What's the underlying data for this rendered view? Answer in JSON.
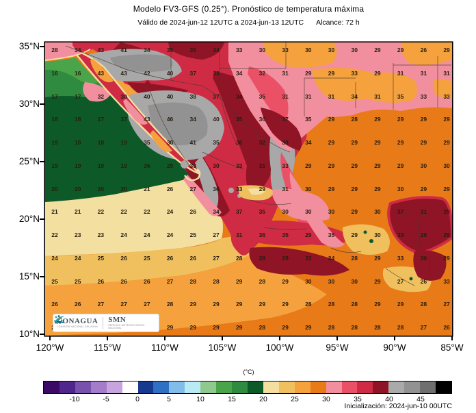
{
  "title": "Modelo FV3-GFS (0.25°). Pronóstico de temperatura máxima",
  "subtitle_valid": "Válido de 2024-jun-12 12UTC a 2024-jun-13 12UTC",
  "subtitle_alcance": "Alcance: 72 h",
  "initialization": "Inicialización: 2024-jun-10 00UTC",
  "axes": {
    "lat_labels": [
      "35°N",
      "30°N",
      "25°N",
      "20°N",
      "15°N",
      "10°N"
    ],
    "lon_labels": [
      "120°W",
      "115°W",
      "110°W",
      "105°W",
      "100°W",
      "95°W",
      "90°W",
      "85°W"
    ]
  },
  "logos": {
    "conagua": "CONAGUA",
    "conagua_tagline": "COMISIÓN NACIONAL DEL AGUA",
    "smn": "SMN",
    "smn_tagline": "SERVICIO METEOROLÓGICO NACIONAL"
  },
  "colorbar": {
    "unit_label": "(°C)",
    "tick_labels": [
      "-10",
      "-5",
      "0",
      "5",
      "10",
      "15",
      "20",
      "25",
      "30",
      "35",
      "40",
      "45"
    ],
    "segment_colors": [
      "#3b0a66",
      "#50258c",
      "#7a50ad",
      "#a47cc9",
      "#c8a4de",
      "#ffffff",
      "#173a8f",
      "#2f6fc4",
      "#82bce8",
      "#b9ebf5",
      "#8fc98f",
      "#4aa44a",
      "#2f8b3f",
      "#0d5a28",
      "#f3dfa0",
      "#f0c05f",
      "#f5a13d",
      "#e87a18",
      "#f28f9e",
      "#ea5167",
      "#cf2b44",
      "#8f1425",
      "#aaaaaa",
      "#929292",
      "#6f6f6f",
      "#000000"
    ]
  },
  "chart_data": {
    "type": "heatmap",
    "title": "Modelo FV3-GFS (0.25°). Pronóstico de temperatura máxima",
    "unit": "°C",
    "lat_range": [
      10,
      35
    ],
    "lon_range": [
      -120,
      -85
    ],
    "colorbar_range": [
      -15,
      50
    ],
    "colorbar_step": 2.5,
    "colorbar_ticks": [
      -10,
      -5,
      0,
      5,
      10,
      15,
      20,
      25,
      30,
      35,
      40,
      45
    ],
    "grid_lats": [
      34.5,
      32.5,
      30.5,
      28.5,
      26.5,
      24.5,
      22.5,
      20.5,
      18.5,
      16.5,
      14.5,
      12.5,
      10.5
    ],
    "grid_lons": [
      -119.5,
      -117.5,
      -115.5,
      -113.5,
      -111.5,
      -109.5,
      -107.5,
      -105.5,
      -103.5,
      -101.5,
      -99.5,
      -97.5,
      -95.5,
      -93.5,
      -91.5,
      -89.5,
      -87.5,
      -85.5
    ],
    "values": [
      [
        28,
        34,
        43,
        41,
        34,
        35,
        35,
        34,
        33,
        30,
        33,
        30,
        30,
        30,
        29,
        29,
        26,
        29
      ],
      [
        16,
        16,
        43,
        43,
        42,
        40,
        37,
        33,
        34,
        32,
        31,
        29,
        29,
        33,
        29,
        31,
        31,
        31
      ],
      [
        17,
        17,
        32,
        30,
        40,
        40,
        38,
        37,
        34,
        35,
        31,
        31,
        31,
        34,
        31,
        35,
        33,
        33
      ],
      [
        18,
        18,
        17,
        37,
        43,
        46,
        34,
        40,
        35,
        36,
        37,
        35,
        29,
        28,
        29,
        29,
        29,
        29
      ],
      [
        19,
        18,
        18,
        19,
        35,
        30,
        41,
        35,
        36,
        32,
        39,
        34,
        29,
        29,
        29,
        29,
        29,
        29
      ],
      [
        19,
        19,
        19,
        19,
        36,
        29,
        33,
        30,
        33,
        31,
        33,
        29,
        29,
        29,
        29,
        29,
        30,
        30
      ],
      [
        20,
        20,
        20,
        20,
        21,
        26,
        27,
        36,
        33,
        29,
        31,
        30,
        29,
        29,
        29,
        30,
        29,
        29
      ],
      [
        21,
        21,
        22,
        22,
        22,
        24,
        26,
        34,
        37,
        35,
        30,
        30,
        30,
        29,
        30,
        37,
        31,
        29
      ],
      [
        22,
        23,
        23,
        24,
        24,
        24,
        25,
        27,
        31,
        36,
        35,
        29,
        35,
        29,
        30,
        33,
        29,
        29
      ],
      [
        24,
        24,
        25,
        26,
        25,
        26,
        26,
        27,
        28,
        28,
        29,
        33,
        34,
        28,
        29,
        33,
        30,
        29
      ],
      [
        25,
        25,
        26,
        26,
        26,
        27,
        28,
        28,
        29,
        28,
        29,
        30,
        30,
        30,
        29,
        27,
        26,
        33
      ],
      [
        26,
        26,
        27,
        27,
        27,
        28,
        29,
        29,
        29,
        29,
        29,
        28,
        28,
        28,
        29,
        29,
        28,
        27
      ],
      [
        26,
        null,
        null,
        null,
        null,
        29,
        29,
        29,
        29,
        28,
        29,
        29,
        28,
        28,
        28,
        28,
        27,
        26
      ]
    ]
  }
}
